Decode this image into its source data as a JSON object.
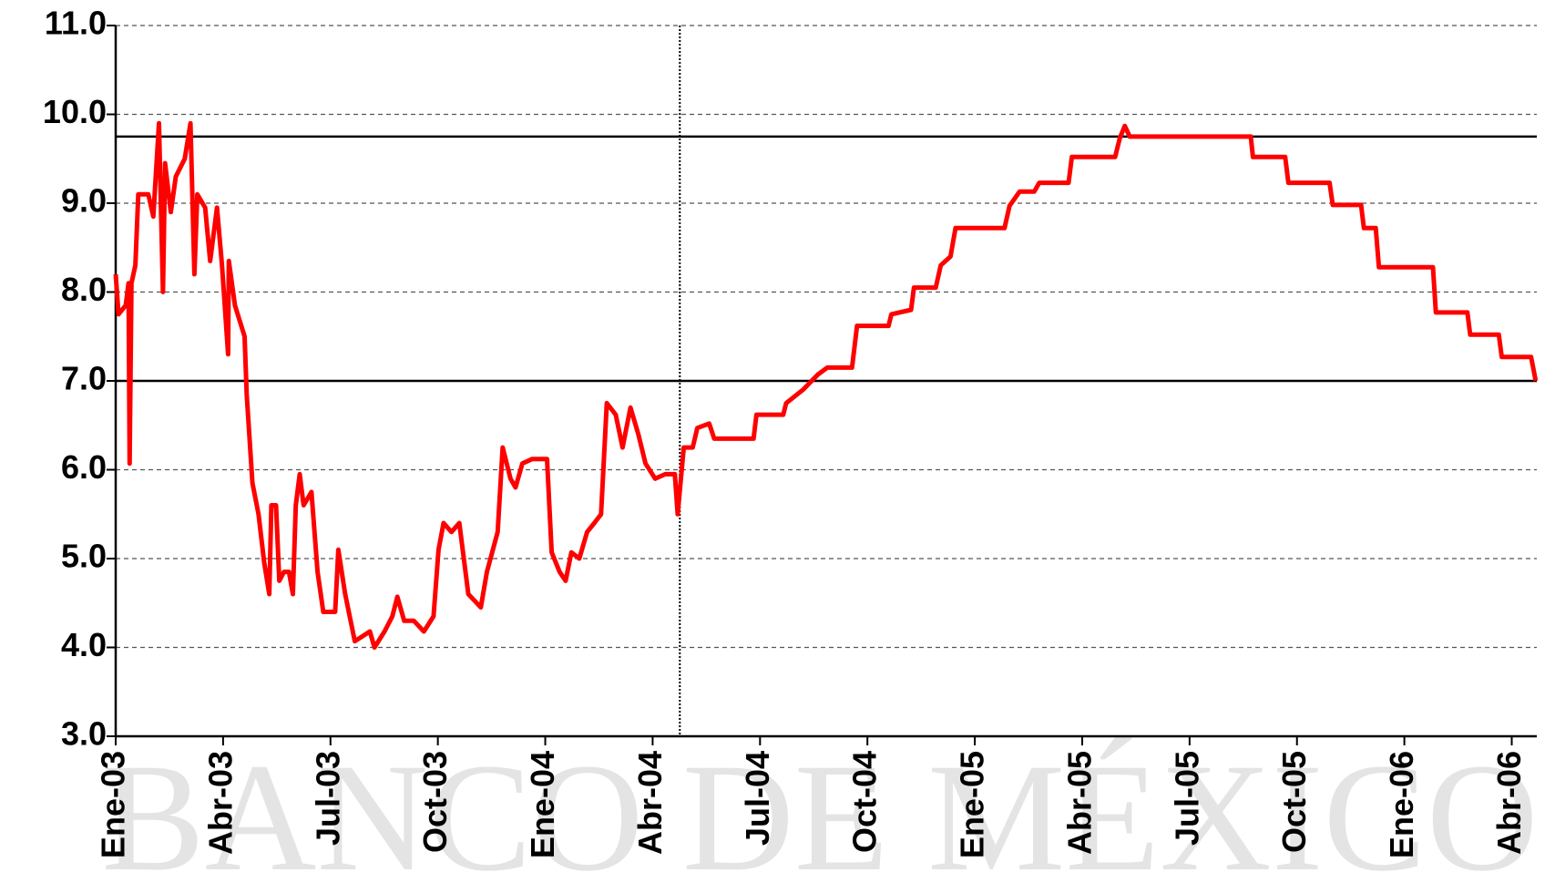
{
  "chart_data": {
    "type": "line",
    "watermark": "BANCO DE MÉXICO",
    "x": [
      0,
      0.08,
      0.28,
      0.36,
      0.39,
      0.44,
      0.55,
      0.63,
      0.91,
      1.05,
      1.21,
      1.32,
      1.38,
      1.54,
      1.68,
      1.93,
      2.09,
      2.2,
      2.28,
      2.5,
      2.64,
      2.83,
      2.97,
      3.14,
      3.16,
      3.33,
      3.6,
      3.66,
      3.82,
      3.99,
      4.15,
      4.29,
      4.35,
      4.48,
      4.57,
      4.7,
      4.84,
      4.95,
      5.03,
      5.14,
      5.25,
      5.47,
      5.64,
      5.8,
      6.13,
      6.22,
      6.41,
      6.68,
      7.1,
      7.23,
      7.51,
      7.73,
      7.87,
      8.06,
      8.33,
      8.61,
      8.88,
      9.02,
      9.16,
      9.38,
      9.6,
      9.85,
      10.2,
      10.37,
      10.67,
      10.81,
      11.03,
      11.17,
      11.36,
      11.63,
      12.05,
      12.18,
      12.4,
      12.57,
      12.73,
      12.95,
      13.17,
      13.37,
      13.56,
      13.72,
      13.97,
      14.16,
      14.38,
      14.6,
      14.8,
      15.07,
      15.35,
      15.62,
      15.7,
      15.87,
      16.12,
      16.25,
      16.58,
      16.72,
      17.82,
      17.9,
      18.65,
      18.73,
      19.2,
      19.61,
      19.88,
      20.57,
      20.71,
      21.59,
      21.67,
      22.22,
      22.3,
      22.91,
      23.05,
      23.32,
      23.46,
      24.83,
      24.97,
      25.25,
      25.66,
      25.8,
      26.62,
      26.71,
      27.92,
      28.05,
      28.19,
      28.33,
      31.71,
      31.77,
      32.67,
      32.76,
      33.91,
      34.0,
      34.79,
      34.87,
      35.2,
      35.29,
      36.8,
      36.88,
      37.76,
      37.84,
      38.64,
      38.72,
      39.54,
      39.67
    ],
    "series": [
      {
        "color": "#ff0000",
        "values": [
          8.2,
          7.75,
          7.85,
          8.1,
          6.07,
          8.1,
          8.3,
          9.1,
          9.1,
          8.85,
          9.9,
          8.0,
          9.45,
          8.9,
          9.3,
          9.5,
          9.9,
          8.2,
          9.1,
          8.95,
          8.35,
          8.95,
          8.3,
          7.3,
          8.35,
          7.85,
          7.5,
          6.85,
          5.85,
          5.5,
          4.95,
          4.6,
          5.6,
          5.6,
          4.75,
          4.85,
          4.85,
          4.6,
          5.6,
          5.95,
          5.6,
          5.75,
          4.85,
          4.4,
          4.4,
          5.1,
          4.6,
          4.07,
          4.18,
          4.0,
          4.18,
          4.35,
          4.57,
          4.3,
          4.3,
          4.18,
          4.35,
          5.1,
          5.4,
          5.3,
          5.4,
          4.6,
          4.45,
          4.85,
          5.3,
          6.25,
          5.9,
          5.8,
          6.07,
          6.12,
          6.12,
          5.07,
          4.85,
          4.75,
          5.07,
          5.0,
          5.3,
          5.4,
          5.5,
          6.75,
          6.62,
          6.25,
          6.7,
          6.4,
          6.07,
          5.9,
          5.95,
          5.95,
          5.5,
          6.25,
          6.25,
          6.47,
          6.52,
          6.35,
          6.35,
          6.62,
          6.62,
          6.75,
          6.9,
          7.07,
          7.15,
          7.15,
          7.62,
          7.62,
          7.75,
          7.8,
          8.05,
          8.05,
          8.3,
          8.4,
          8.72,
          8.72,
          8.97,
          9.13,
          9.13,
          9.23,
          9.23,
          9.52,
          9.52,
          9.73,
          9.87,
          9.75,
          9.75,
          9.52,
          9.52,
          9.23,
          9.23,
          8.98,
          8.98,
          8.72,
          8.72,
          8.28,
          8.28,
          7.77,
          7.77,
          7.52,
          7.52,
          7.27,
          7.27,
          7.0
        ]
      }
    ],
    "reference_lines": [
      9.75,
      7.0
    ],
    "vline": 15.76,
    "xlim": [
      0,
      39.7
    ],
    "xticks": [
      {
        "value": 0,
        "label": "Ene-03"
      },
      {
        "value": 3,
        "label": "Abr-03"
      },
      {
        "value": 6,
        "label": "Jul-03"
      },
      {
        "value": 9,
        "label": "Oct-03"
      },
      {
        "value": 12,
        "label": "Ene-04"
      },
      {
        "value": 15,
        "label": "Abr-04"
      },
      {
        "value": 18,
        "label": "Jul-04"
      },
      {
        "value": 21,
        "label": "Oct-04"
      },
      {
        "value": 24,
        "label": "Ene-05"
      },
      {
        "value": 27,
        "label": "Abr-05"
      },
      {
        "value": 30,
        "label": "Jul-05"
      },
      {
        "value": 33,
        "label": "Oct-05"
      },
      {
        "value": 36,
        "label": "Ene-06"
      },
      {
        "value": 39,
        "label": "Abr-06"
      }
    ],
    "ylim": [
      3,
      11
    ],
    "yticks": [
      {
        "value": 3,
        "label": "3.0"
      },
      {
        "value": 4,
        "label": "4.0"
      },
      {
        "value": 5,
        "label": "5.0"
      },
      {
        "value": 6,
        "label": "6.0"
      },
      {
        "value": 7,
        "label": "7.0"
      },
      {
        "value": 8,
        "label": "8.0"
      },
      {
        "value": 9,
        "label": "9.0"
      },
      {
        "value": 10,
        "label": "10.0"
      },
      {
        "value": 11,
        "label": "11.0"
      }
    ],
    "grid": true
  }
}
